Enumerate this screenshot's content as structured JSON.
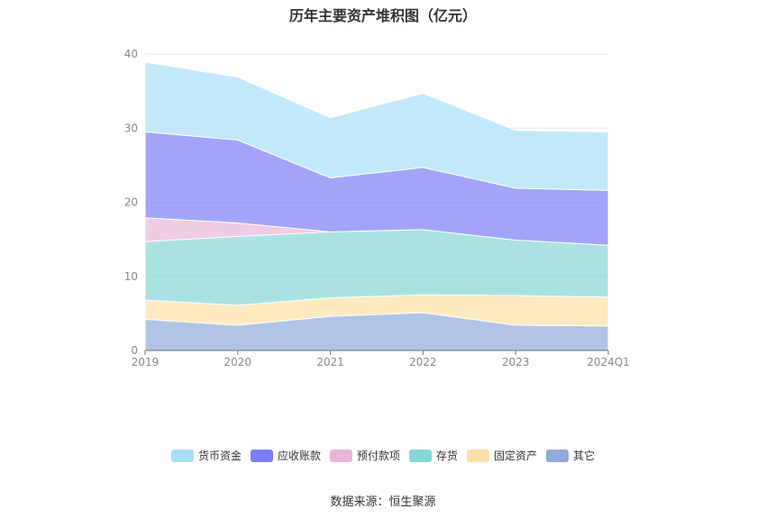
{
  "title": "历年主要资产堆积图（亿元）",
  "source": "数据来源：恒生聚源",
  "chart_data": {
    "type": "area",
    "stacked": true,
    "categories": [
      "2019",
      "2020",
      "2021",
      "2022",
      "2023",
      "2024Q1"
    ],
    "ylim": [
      0,
      40
    ],
    "yticks": [
      0,
      10,
      20,
      30,
      40
    ],
    "grid": true,
    "legend_position": "bottom",
    "series": [
      {
        "name": "其它",
        "color": "#8eabdb",
        "values": [
          4.2,
          3.4,
          4.6,
          5.1,
          3.4,
          3.3
        ]
      },
      {
        "name": "固定资产",
        "color": "#fddfa5",
        "values": [
          2.6,
          2.7,
          2.5,
          2.4,
          4.0,
          3.9
        ]
      },
      {
        "name": "存货",
        "color": "#86d6d5",
        "values": [
          7.9,
          9.3,
          8.9,
          8.8,
          7.5,
          7.0
        ]
      },
      {
        "name": "预付款项",
        "color": "#e8b5d9",
        "values": [
          3.2,
          1.8,
          0.0,
          0.0,
          0.0,
          0.0
        ]
      },
      {
        "name": "应收账款",
        "color": "#7b7ef5",
        "values": [
          11.6,
          11.2,
          7.3,
          8.4,
          7.0,
          7.4
        ]
      },
      {
        "name": "货币资金",
        "color": "#a7dff8",
        "values": [
          9.4,
          8.5,
          8.1,
          10.0,
          7.8,
          7.9
        ]
      }
    ],
    "legend_order": [
      "货币资金",
      "应收账款",
      "预付款项",
      "存货",
      "固定资产",
      "其它"
    ]
  }
}
